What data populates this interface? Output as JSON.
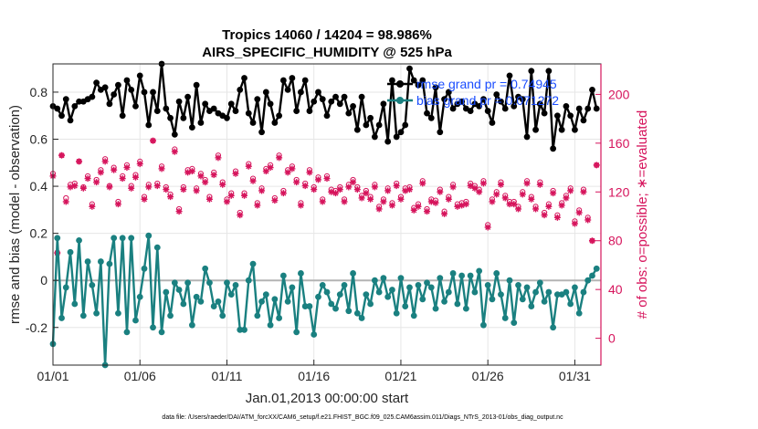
{
  "chart_data": {
    "type": "line",
    "title_line1": "Tropics 14060 / 14204 = 98.986%",
    "title_line2": "AIRS_SPECIFIC_HUMIDITY @ 525 hPa",
    "xlabel": "Jan.01,2013 00:00:00 start",
    "ylabel_left": "rmse and bias (model - observation)",
    "ylabel_right": "# of obs: o=possible; ∗=evaluated",
    "xlim": [
      0,
      31.5
    ],
    "ylim_left": [
      -0.36,
      0.92
    ],
    "ylim_right": [
      -22,
      225
    ],
    "x_ticks": [
      0,
      5,
      10,
      15,
      20,
      25,
      30
    ],
    "x_tick_labels": [
      "01/01",
      "01/06",
      "01/11",
      "01/16",
      "01/21",
      "01/26",
      "01/31"
    ],
    "y_ticks_left": [
      -0.2,
      0,
      0.2,
      0.4,
      0.6,
      0.8
    ],
    "y_tick_labels_left": [
      "-0.2",
      "0",
      "0.2",
      "0.4",
      "0.6",
      "0.8"
    ],
    "y_ticks_right": [
      0,
      40,
      80,
      120,
      160,
      200
    ],
    "y_tick_labels_right": [
      "0",
      "40",
      "80",
      "120",
      "160",
      "200"
    ],
    "colors": {
      "rmse": "#000000",
      "bias": "#1a8080",
      "obs": "#d6145c",
      "zero_line": "#b4b4b4",
      "legend_text": "#1a4dff"
    },
    "legend": {
      "location": "top-right",
      "entries": [
        {
          "label": "rmse grand pr = 0.74945",
          "series": "rmse"
        },
        {
          "label": "bias grand pr = 0.071272",
          "series": "bias"
        }
      ]
    },
    "footnote": "data file: /Users/raeder/DAI/ATM_forcXX/CAM6_setup/f.e21.FHIST_BGC.f09_025.CAM6assim.011/Diags_NTrS_2013-01/obs_diag_output.nc",
    "series": [
      {
        "name": "rmse",
        "axis": "left",
        "x": [
          0.0,
          0.25,
          0.5,
          0.75,
          1.0,
          1.25,
          1.5,
          1.75,
          2.0,
          2.25,
          2.5,
          2.75,
          3.0,
          3.25,
          3.5,
          3.75,
          4.0,
          4.25,
          4.5,
          4.75,
          5.0,
          5.25,
          5.5,
          5.75,
          6.0,
          6.25,
          6.5,
          6.75,
          7.0,
          7.25,
          7.5,
          7.75,
          8.0,
          8.25,
          8.5,
          8.75,
          9.0,
          9.25,
          9.5,
          9.75,
          10.0,
          10.25,
          10.5,
          10.75,
          11.0,
          11.25,
          11.5,
          11.75,
          12.0,
          12.25,
          12.5,
          12.75,
          13.0,
          13.25,
          13.5,
          13.75,
          14.0,
          14.25,
          14.5,
          14.75,
          15.0,
          15.25,
          15.5,
          15.75,
          16.0,
          16.25,
          16.5,
          16.75,
          17.0,
          17.25,
          17.5,
          17.75,
          18.0,
          18.25,
          18.5,
          18.75,
          19.0,
          19.25,
          19.5,
          19.75,
          20.0,
          20.25,
          20.5,
          20.75,
          21.0,
          21.25,
          21.5,
          21.75,
          22.0,
          22.25,
          22.5,
          22.75,
          23.0,
          23.25,
          23.5,
          23.75,
          24.0,
          24.25,
          24.5,
          24.75,
          25.0,
          25.25,
          25.5,
          25.75,
          26.0,
          26.25,
          26.5,
          26.75,
          27.0,
          27.25,
          27.5,
          27.75,
          28.0,
          28.25,
          28.5,
          28.75,
          29.0,
          29.25,
          29.5,
          29.75,
          30.0,
          30.25,
          30.5,
          30.75,
          31.0,
          31.25
        ],
        "values": [
          0.74,
          0.73,
          0.7,
          0.77,
          0.68,
          0.74,
          0.76,
          0.76,
          0.77,
          0.78,
          0.84,
          0.81,
          0.82,
          0.75,
          0.79,
          0.83,
          0.7,
          0.85,
          0.81,
          0.74,
          0.87,
          0.8,
          0.66,
          0.8,
          0.72,
          0.92,
          0.73,
          0.69,
          0.62,
          0.76,
          0.69,
          0.78,
          0.65,
          0.83,
          0.67,
          0.75,
          0.72,
          0.73,
          0.71,
          0.7,
          0.69,
          0.75,
          0.72,
          0.81,
          0.86,
          0.71,
          0.67,
          0.77,
          0.63,
          0.8,
          0.75,
          0.67,
          0.7,
          0.85,
          0.81,
          0.86,
          0.72,
          0.8,
          0.85,
          0.72,
          0.76,
          0.8,
          0.77,
          0.7,
          0.76,
          0.78,
          0.75,
          0.78,
          0.71,
          0.74,
          0.64,
          0.78,
          0.66,
          0.69,
          0.61,
          0.66,
          0.75,
          0.59,
          0.85,
          0.61,
          0.63,
          0.66,
          0.9,
          0.85,
          0.83,
          0.85,
          0.71,
          0.69,
          0.82,
          0.63,
          0.77,
          0.8,
          0.73,
          0.75,
          0.76,
          0.73,
          0.72,
          0.75,
          0.74,
          0.77,
          0.72,
          0.67,
          0.79,
          0.76,
          0.73,
          0.87,
          0.74,
          0.78,
          0.77,
          0.61,
          0.89,
          0.64,
          0.75,
          0.71,
          0.89,
          0.56,
          0.7,
          0.64,
          0.74,
          0.7,
          0.64,
          0.73,
          0.68,
          0.73,
          0.81,
          0.73
        ]
      },
      {
        "name": "bias",
        "axis": "left",
        "x": [
          0.0,
          0.25,
          0.5,
          0.75,
          1.0,
          1.25,
          1.5,
          1.75,
          2.0,
          2.25,
          2.5,
          2.75,
          3.0,
          3.25,
          3.5,
          3.75,
          4.0,
          4.25,
          4.5,
          4.75,
          5.0,
          5.25,
          5.5,
          5.75,
          6.0,
          6.25,
          6.5,
          6.75,
          7.0,
          7.25,
          7.5,
          7.75,
          8.0,
          8.25,
          8.5,
          8.75,
          9.0,
          9.25,
          9.5,
          9.75,
          10.0,
          10.25,
          10.5,
          10.75,
          11.0,
          11.25,
          11.5,
          11.75,
          12.0,
          12.25,
          12.5,
          12.75,
          13.0,
          13.25,
          13.5,
          13.75,
          14.0,
          14.25,
          14.5,
          14.75,
          15.0,
          15.25,
          15.5,
          15.75,
          16.0,
          16.25,
          16.5,
          16.75,
          17.0,
          17.25,
          17.5,
          17.75,
          18.0,
          18.25,
          18.5,
          18.75,
          19.0,
          19.25,
          19.5,
          19.75,
          20.0,
          20.25,
          20.5,
          20.75,
          21.0,
          21.25,
          21.5,
          21.75,
          22.0,
          22.25,
          22.5,
          22.75,
          23.0,
          23.25,
          23.5,
          23.75,
          24.0,
          24.25,
          24.5,
          24.75,
          25.0,
          25.25,
          25.5,
          25.75,
          26.0,
          26.25,
          26.5,
          26.75,
          27.0,
          27.25,
          27.5,
          27.75,
          28.0,
          28.25,
          28.5,
          28.75,
          29.0,
          29.25,
          29.5,
          29.75,
          30.0,
          30.25,
          30.5,
          30.75,
          31.0,
          31.25
        ],
        "values": [
          -0.27,
          0.18,
          -0.16,
          -0.03,
          0.12,
          -0.1,
          0.17,
          -0.15,
          0.08,
          -0.02,
          -0.14,
          0.08,
          -0.36,
          0.07,
          0.18,
          -0.14,
          0.18,
          -0.22,
          0.18,
          -0.17,
          -0.07,
          0.05,
          0.19,
          -0.2,
          0.14,
          -0.22,
          -0.05,
          -0.15,
          -0.01,
          -0.04,
          -0.1,
          -0.01,
          -0.19,
          -0.07,
          -0.09,
          0.05,
          -0.01,
          -0.11,
          -0.09,
          -0.15,
          -0.01,
          -0.06,
          -0.02,
          -0.21,
          -0.21,
          0.0,
          0.07,
          -0.15,
          -0.09,
          -0.06,
          -0.19,
          -0.08,
          -0.16,
          0.02,
          -0.09,
          -0.03,
          -0.22,
          0.03,
          -0.11,
          -0.11,
          -0.23,
          -0.07,
          -0.02,
          -0.05,
          -0.1,
          -0.12,
          -0.06,
          -0.02,
          -0.13,
          0.03,
          -0.14,
          -0.16,
          -0.06,
          -0.1,
          0.0,
          -0.05,
          0.01,
          -0.07,
          -0.04,
          -0.14,
          0.01,
          -0.11,
          -0.03,
          -0.15,
          -0.02,
          -0.08,
          -0.01,
          -0.03,
          -0.12,
          0.01,
          -0.09,
          -0.05,
          0.03,
          -0.1,
          0.02,
          -0.12,
          0.02,
          -0.05,
          0.04,
          -0.19,
          -0.02,
          -0.08,
          0.03,
          -0.06,
          -0.16,
          0.0,
          -0.18,
          -0.02,
          -0.08,
          -0.03,
          -0.11,
          -0.05,
          -0.01,
          -0.09,
          -0.05,
          -0.2,
          -0.06,
          -0.06,
          -0.05,
          -0.1,
          -0.03,
          -0.14,
          -0.05,
          0.0,
          0.02,
          0.05
        ]
      },
      {
        "name": "obs_possible",
        "axis": "right",
        "x": [
          0.0,
          0.25,
          0.5,
          0.75,
          1.0,
          1.25,
          1.5,
          1.75,
          2.0,
          2.25,
          2.5,
          2.75,
          3.0,
          3.25,
          3.5,
          3.75,
          4.0,
          4.25,
          4.5,
          4.75,
          5.0,
          5.25,
          5.5,
          5.75,
          6.0,
          6.25,
          6.5,
          6.75,
          7.0,
          7.25,
          7.5,
          7.75,
          8.0,
          8.25,
          8.5,
          8.75,
          9.0,
          9.25,
          9.5,
          9.75,
          10.0,
          10.25,
          10.5,
          10.75,
          11.0,
          11.25,
          11.5,
          11.75,
          12.0,
          12.25,
          12.5,
          12.75,
          13.0,
          13.25,
          13.5,
          13.75,
          14.0,
          14.25,
          14.5,
          14.75,
          15.0,
          15.25,
          15.5,
          15.75,
          16.0,
          16.25,
          16.5,
          16.75,
          17.0,
          17.25,
          17.5,
          17.75,
          18.0,
          18.25,
          18.5,
          18.75,
          19.0,
          19.25,
          19.5,
          19.75,
          20.0,
          20.25,
          20.5,
          20.75,
          21.0,
          21.25,
          21.5,
          21.75,
          22.0,
          22.25,
          22.5,
          22.75,
          23.0,
          23.25,
          23.5,
          23.75,
          24.0,
          24.25,
          24.5,
          24.75,
          25.0,
          25.25,
          25.5,
          25.75,
          26.0,
          26.25,
          26.5,
          26.75,
          27.0,
          27.25,
          27.5,
          27.75,
          28.0,
          28.25,
          28.5,
          28.75,
          29.0,
          29.25,
          29.5,
          29.75,
          30.0,
          30.25,
          30.5,
          30.75,
          31.0,
          31.25
        ],
        "values": [
          135,
          70,
          150,
          115,
          126,
          127,
          145,
          124,
          133,
          110,
          130,
          138,
          147,
          125,
          140,
          112,
          133,
          142,
          125,
          134,
          145,
          116,
          126,
          162,
          127,
          141,
          124,
          118,
          155,
          106,
          124,
          138,
          139,
          123,
          135,
          130,
          116,
          136,
          150,
          128,
          114,
          119,
          137,
          103,
          119,
          143,
          131,
          111,
          123,
          139,
          142,
          115,
          150,
          121,
          138,
          141,
          130,
          111,
          127,
          138,
          124,
          132,
          114,
          133,
          122,
          121,
          124,
          114,
          126,
          130,
          124,
          117,
          121,
          116,
          126,
          108,
          114,
          123,
          111,
          127,
          116,
          123,
          124,
          107,
          110,
          129,
          106,
          114,
          113,
          122,
          104,
          116,
          126,
          110,
          111,
          112,
          127,
          125,
          122,
          129,
          93,
          114,
          120,
          128,
          117,
          112,
          112,
          108,
          120,
          129,
          116,
          108,
          128,
          103,
          110,
          121,
          101,
          111,
          117,
          123,
          96,
          105,
          122,
          99,
          80,
          142
        ]
      },
      {
        "name": "obs_evaluated",
        "axis": "right",
        "x": [
          0.0,
          0.25,
          0.5,
          0.75,
          1.0,
          1.25,
          1.5,
          1.75,
          2.0,
          2.25,
          2.5,
          2.75,
          3.0,
          3.25,
          3.5,
          3.75,
          4.0,
          4.25,
          4.5,
          4.75,
          5.0,
          5.25,
          5.5,
          5.75,
          6.0,
          6.25,
          6.5,
          6.75,
          7.0,
          7.25,
          7.5,
          7.75,
          8.0,
          8.25,
          8.5,
          8.75,
          9.0,
          9.25,
          9.5,
          9.75,
          10.0,
          10.25,
          10.5,
          10.75,
          11.0,
          11.25,
          11.5,
          11.75,
          12.0,
          12.25,
          12.5,
          12.75,
          13.0,
          13.25,
          13.5,
          13.75,
          14.0,
          14.25,
          14.5,
          14.75,
          15.0,
          15.25,
          15.5,
          15.75,
          16.0,
          16.25,
          16.5,
          16.75,
          17.0,
          17.25,
          17.5,
          17.75,
          18.0,
          18.25,
          18.5,
          18.75,
          19.0,
          19.25,
          19.5,
          19.75,
          20.0,
          20.25,
          20.5,
          20.75,
          21.0,
          21.25,
          21.5,
          21.75,
          22.0,
          22.25,
          22.5,
          22.75,
          23.0,
          23.25,
          23.5,
          23.75,
          24.0,
          24.25,
          24.5,
          24.75,
          25.0,
          25.25,
          25.5,
          25.75,
          26.0,
          26.25,
          26.5,
          26.75,
          27.0,
          27.25,
          27.5,
          27.75,
          28.0,
          28.25,
          28.5,
          28.75,
          29.0,
          29.25,
          29.5,
          29.75,
          30.0,
          30.25,
          30.5,
          30.75,
          31.0,
          31.25
        ],
        "values": [
          133,
          70,
          150,
          112,
          124,
          125,
          145,
          123,
          131,
          108,
          128,
          136,
          145,
          124,
          138,
          110,
          131,
          140,
          123,
          132,
          143,
          114,
          124,
          162,
          125,
          139,
          122,
          116,
          153,
          104,
          122,
          136,
          137,
          121,
          133,
          128,
          114,
          134,
          148,
          126,
          112,
          117,
          135,
          101,
          117,
          141,
          129,
          109,
          121,
          137,
          140,
          113,
          148,
          119,
          136,
          139,
          128,
          109,
          125,
          136,
          122,
          130,
          112,
          131,
          120,
          119,
          122,
          112,
          124,
          128,
          122,
          115,
          119,
          114,
          124,
          106,
          112,
          121,
          109,
          125,
          114,
          121,
          122,
          105,
          108,
          127,
          104,
          112,
          111,
          120,
          102,
          114,
          124,
          108,
          109,
          110,
          125,
          123,
          120,
          127,
          91,
          112,
          118,
          126,
          115,
          110,
          110,
          106,
          118,
          127,
          114,
          106,
          126,
          101,
          108,
          119,
          99,
          109,
          115,
          121,
          94,
          103,
          120,
          97,
          80,
          142
        ]
      }
    ]
  }
}
